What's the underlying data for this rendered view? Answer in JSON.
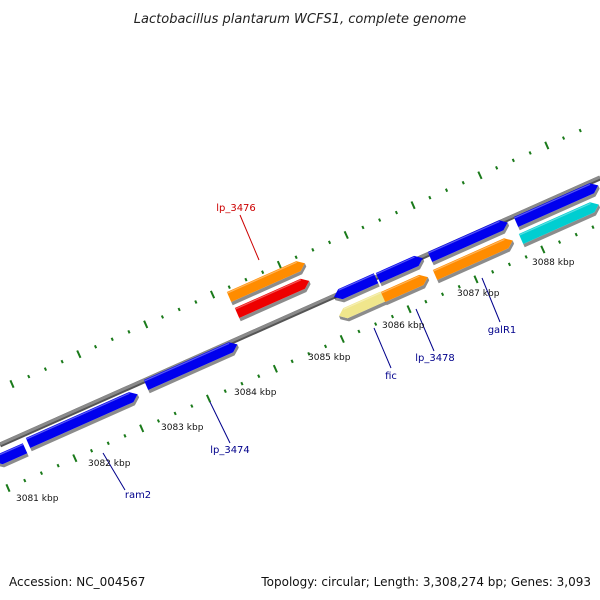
{
  "title": "Lactobacillus plantarum WCFS1, complete genome",
  "footer": {
    "accession": "Accession: NC_004567",
    "summary": "Topology: circular; Length: 3,308,274 bp; Genes: 3,093"
  },
  "colors": {
    "backbone": "#7f7f7f",
    "tick": "#1a7a1a",
    "label_red": "#cc0000",
    "label_blue": "#00008b"
  },
  "scale_labels": [
    "3081 kbp",
    "3082 kbp",
    "3083 kbp",
    "3084 kbp",
    "3085 kbp",
    "3086 kbp",
    "3087 kbp",
    "3088 kbp"
  ],
  "gene_labels": [
    {
      "name": "lp_3476",
      "color": "#cc0000"
    },
    {
      "name": "lp_3474",
      "color": "#00008b"
    },
    {
      "name": "ram2",
      "color": "#00008b"
    },
    {
      "name": "fic",
      "color": "#00008b"
    },
    {
      "name": "lp_3478",
      "color": "#00008b"
    },
    {
      "name": "galR1",
      "color": "#00008b"
    }
  ],
  "features": [
    {
      "color": "#0000ee",
      "strand": "-"
    },
    {
      "color": "#0000ee",
      "strand": "+"
    },
    {
      "color": "#0000ee",
      "strand": "+"
    },
    {
      "color": "#0000ee",
      "strand": "+"
    },
    {
      "color": "#ff8c00",
      "strand": "+"
    },
    {
      "color": "#ee0000",
      "strand": "+"
    },
    {
      "color": "#0000ee",
      "strand": "-"
    },
    {
      "color": "#0000ee",
      "strand": "+"
    },
    {
      "color": "#f0e68c",
      "strand": "-"
    },
    {
      "color": "#ff8c00",
      "strand": "+"
    },
    {
      "color": "#0000ee",
      "strand": "+"
    },
    {
      "color": "#ff8c00",
      "strand": "+"
    },
    {
      "color": "#0000ee",
      "strand": "+"
    },
    {
      "color": "#00ced1",
      "strand": "+"
    }
  ]
}
